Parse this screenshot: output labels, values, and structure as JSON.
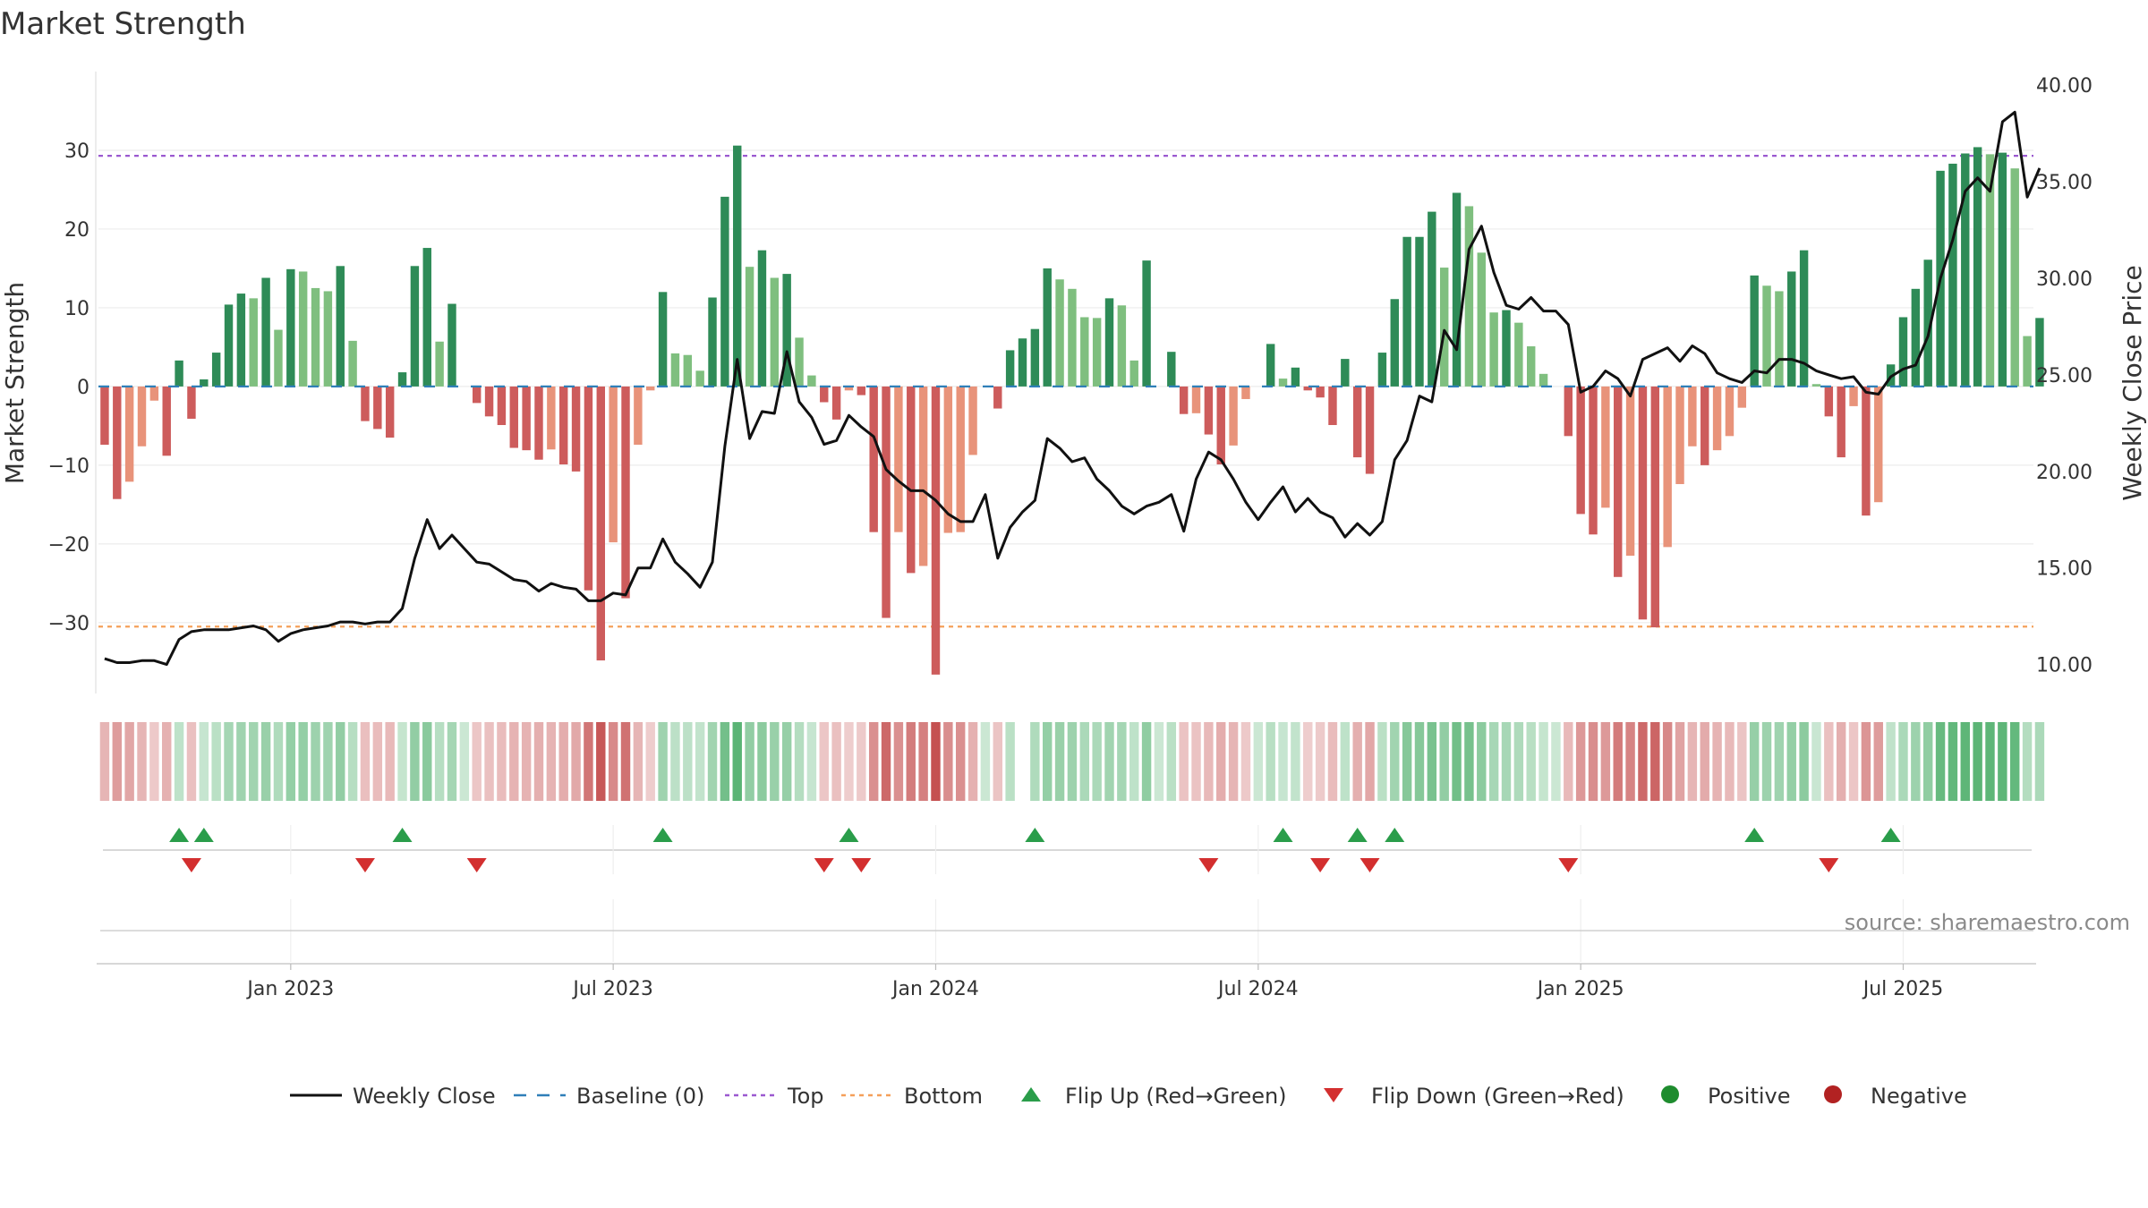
{
  "chart_data": {
    "type": "bar",
    "title": "Market Strength",
    "ylabel_left": "Market Strength",
    "ylabel_right": "Weekly Close Price",
    "source": "source: sharemaestro.com",
    "ylim_left": [
      -39,
      40
    ],
    "yticks_left": [
      {
        "v": 30,
        "label": "30"
      },
      {
        "v": 20,
        "label": "20"
      },
      {
        "v": 10,
        "label": "10"
      },
      {
        "v": 0,
        "label": "0"
      },
      {
        "v": -10,
        "label": "−10"
      },
      {
        "v": -20,
        "label": "−20"
      },
      {
        "v": -30,
        "label": "−30"
      }
    ],
    "ylim_right": [
      8.5,
      40.7
    ],
    "yticks_right": [
      {
        "v": 40,
        "label": "40.00"
      },
      {
        "v": 35,
        "label": "35.00"
      },
      {
        "v": 30,
        "label": "30.00"
      },
      {
        "v": 25,
        "label": "25.00"
      },
      {
        "v": 20,
        "label": "20.00"
      },
      {
        "v": 15,
        "label": "15.00"
      },
      {
        "v": 10,
        "label": "10.00"
      }
    ],
    "x_range_weeks": [
      0,
      156
    ],
    "xticks": [
      {
        "w": 15,
        "label": "Jan 2023"
      },
      {
        "w": 41,
        "label": "Jul 2023"
      },
      {
        "w": 67,
        "label": "Jan 2024"
      },
      {
        "w": 93,
        "label": "Jul 2024"
      },
      {
        "w": 119,
        "label": "Jan 2025"
      },
      {
        "w": 145,
        "label": "Jul 2025"
      }
    ],
    "top_line": 29.3,
    "bottom_line": -30.5,
    "strength": [
      -7.4,
      -14.3,
      -12.1,
      -7.6,
      -1.8,
      -8.8,
      3.3,
      -4.1,
      0.9,
      4.3,
      10.4,
      11.8,
      11.2,
      13.8,
      7.2,
      14.9,
      14.6,
      12.5,
      12.1,
      15.3,
      5.8,
      -4.4,
      -5.4,
      -6.5,
      1.8,
      15.3,
      17.6,
      5.7,
      10.5,
      0,
      -2.1,
      -3.8,
      -4.9,
      -7.8,
      -8.1,
      -9.3,
      -8.0,
      -9.9,
      -10.8,
      -25.9,
      -34.8,
      -19.8,
      -26.9,
      -7.4,
      -0.5,
      12.0,
      4.2,
      4.0,
      2.0,
      11.3,
      24.1,
      30.6,
      15.2,
      17.3,
      13.8,
      14.3,
      6.2,
      1.4,
      -2.0,
      -4.2,
      -0.5,
      -1.1,
      -18.5,
      -29.4,
      -18.5,
      -23.7,
      -22.8,
      -36.6,
      -18.6,
      -18.5,
      -8.7,
      0,
      -2.8,
      4.6,
      6.1,
      7.3,
      15.0,
      13.6,
      12.4,
      8.8,
      8.7,
      11.2,
      10.3,
      3.3,
      16.0,
      0,
      4.4,
      -3.5,
      -3.4,
      -6.1,
      -9.9,
      -7.5,
      -1.6,
      0,
      5.4,
      1.0,
      2.4,
      -0.5,
      -1.4,
      -4.9,
      3.5,
      -9.0,
      -11.1,
      4.3,
      11.1,
      19.0,
      19.0,
      22.2,
      15.1,
      24.6,
      22.9,
      17.0,
      9.4,
      9.7,
      8.1,
      5.1,
      1.6,
      0,
      -6.3,
      -16.2,
      -18.8,
      -15.4,
      -24.2,
      -21.5,
      -29.6,
      -30.6,
      -20.4,
      -12.4,
      -7.6,
      -10.0,
      -8.1,
      -6.3,
      -2.7,
      14.1,
      12.8,
      12.1,
      14.6,
      17.3,
      0.3,
      -3.8,
      -9.0,
      -2.5,
      -16.4,
      -14.7,
      2.8,
      8.8,
      12.4,
      16.1,
      27.4,
      28.3,
      29.6,
      30.4,
      29.5,
      29.7,
      27.7,
      6.4,
      8.7
    ],
    "close": [
      10.3,
      10.1,
      10.1,
      10.2,
      10.2,
      10.0,
      11.3,
      11.7,
      11.8,
      11.8,
      11.8,
      11.9,
      12.0,
      11.8,
      11.2,
      11.6,
      11.8,
      11.9,
      12.0,
      12.2,
      12.2,
      12.1,
      12.2,
      12.2,
      12.9,
      15.5,
      17.5,
      16.0,
      16.7,
      16.0,
      15.3,
      15.2,
      14.8,
      14.4,
      14.3,
      13.8,
      14.2,
      14.0,
      13.9,
      13.3,
      13.3,
      13.7,
      13.6,
      15.0,
      15.0,
      16.5,
      15.3,
      14.7,
      14.0,
      15.3,
      21.3,
      25.8,
      21.7,
      23.1,
      23.0,
      26.2,
      23.6,
      22.8,
      21.4,
      21.6,
      22.9,
      22.3,
      21.8,
      20.1,
      19.5,
      19.0,
      19.0,
      18.5,
      17.8,
      17.4,
      17.4,
      18.8,
      15.5,
      17.1,
      17.9,
      18.5,
      21.7,
      21.2,
      20.5,
      20.7,
      19.6,
      19.0,
      18.2,
      17.8,
      18.2,
      18.4,
      18.8,
      16.9,
      19.6,
      21.0,
      20.6,
      19.6,
      18.4,
      17.5,
      18.4,
      19.2,
      17.9,
      18.6,
      17.9,
      17.6,
      16.6,
      17.3,
      16.7,
      17.4,
      20.6,
      21.6,
      23.9,
      23.6,
      27.3,
      26.3,
      31.5,
      32.7,
      30.3,
      28.6,
      28.4,
      29.0,
      28.3,
      28.3,
      27.6,
      24.1,
      24.4,
      25.2,
      24.8,
      23.9,
      25.8,
      26.1,
      26.4,
      25.7,
      26.5,
      26.1,
      25.1,
      24.8,
      24.6,
      25.2,
      25.1,
      25.8,
      25.8,
      25.6,
      25.2,
      25.0,
      24.8,
      24.9,
      24.1,
      24.0,
      24.9,
      25.3,
      25.5,
      27.0,
      30.0,
      32.0,
      34.5,
      35.2,
      34.5,
      38.1,
      38.6,
      34.2,
      35.7
    ],
    "flip_up_weeks": [
      6,
      8,
      24,
      45,
      60,
      75,
      95,
      101,
      104,
      133,
      144
    ],
    "flip_down_weeks": [
      7,
      21,
      30,
      58,
      61,
      89,
      98,
      102,
      118,
      139
    ],
    "heat_gaps": [
      74
    ],
    "legend": [
      {
        "key": "close",
        "label": "Weekly Close",
        "color": "#111111"
      },
      {
        "key": "baseline",
        "label": "Baseline (0)",
        "color": "#2f7fb8"
      },
      {
        "key": "top",
        "label": "Top",
        "color": "#9b59d0"
      },
      {
        "key": "bottom",
        "label": "Bottom",
        "color": "#f5a05a"
      },
      {
        "key": "flip_up",
        "label": "Flip Up (Red→Green)",
        "color": "#2a9d4a"
      },
      {
        "key": "flip_down",
        "label": "Flip Down (Green→Red)",
        "color": "#d32f2f"
      },
      {
        "key": "positive",
        "label": "Positive",
        "color": "#1e8c2e"
      },
      {
        "key": "negative",
        "label": "Negative",
        "color": "#b22222"
      }
    ]
  }
}
